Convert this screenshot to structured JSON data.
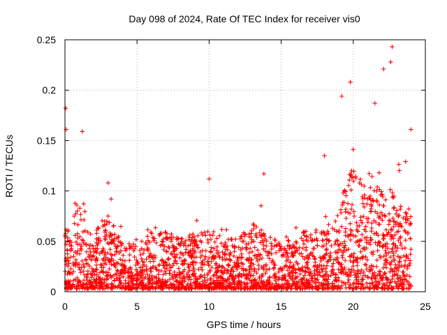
{
  "chart_data": {
    "type": "scatter",
    "title": "Day 098 of 2024, Rate Of TEC Index for receiver vis0",
    "xlabel": "GPS time / hours",
    "ylabel": "ROTI / TECUs",
    "xlim": [
      0,
      25
    ],
    "ylim": [
      0,
      0.25
    ],
    "x_ticks": [
      0,
      5,
      10,
      15,
      20,
      25
    ],
    "x_tick_labels": [
      "0",
      "5",
      "10",
      "15",
      "20",
      "25"
    ],
    "y_ticks": [
      0,
      0.05,
      0.1,
      0.15,
      0.2,
      0.25
    ],
    "y_tick_labels": [
      "0",
      "0.05",
      "0.1",
      "0.15",
      "0.2",
      "0.25"
    ],
    "grid": true,
    "marker": "plus",
    "color": "#ff0000",
    "x_range_of_data": [
      0,
      24
    ],
    "notable_points": [
      {
        "x": 0.05,
        "y": 0.182
      },
      {
        "x": 0.08,
        "y": 0.161
      },
      {
        "x": 1.2,
        "y": 0.159
      },
      {
        "x": 3.0,
        "y": 0.108
      },
      {
        "x": 10.0,
        "y": 0.112
      },
      {
        "x": 13.8,
        "y": 0.117
      },
      {
        "x": 18.0,
        "y": 0.135
      },
      {
        "x": 19.2,
        "y": 0.194
      },
      {
        "x": 19.8,
        "y": 0.208
      },
      {
        "x": 21.5,
        "y": 0.187
      },
      {
        "x": 22.1,
        "y": 0.221
      },
      {
        "x": 22.6,
        "y": 0.228
      },
      {
        "x": 22.7,
        "y": 0.243
      },
      {
        "x": 24.0,
        "y": 0.161
      }
    ],
    "envelope": [
      {
        "x": 0.0,
        "y": 0.06
      },
      {
        "x": 0.5,
        "y": 0.07
      },
      {
        "x": 1.0,
        "y": 0.09
      },
      {
        "x": 1.5,
        "y": 0.06
      },
      {
        "x": 2.0,
        "y": 0.055
      },
      {
        "x": 2.5,
        "y": 0.07
      },
      {
        "x": 3.0,
        "y": 0.075
      },
      {
        "x": 3.5,
        "y": 0.06
      },
      {
        "x": 4.0,
        "y": 0.045
      },
      {
        "x": 5.0,
        "y": 0.045
      },
      {
        "x": 6.0,
        "y": 0.055
      },
      {
        "x": 7.0,
        "y": 0.06
      },
      {
        "x": 8.0,
        "y": 0.05
      },
      {
        "x": 9.0,
        "y": 0.055
      },
      {
        "x": 10.0,
        "y": 0.06
      },
      {
        "x": 11.0,
        "y": 0.05
      },
      {
        "x": 12.0,
        "y": 0.05
      },
      {
        "x": 13.0,
        "y": 0.065
      },
      {
        "x": 14.0,
        "y": 0.055
      },
      {
        "x": 15.0,
        "y": 0.05
      },
      {
        "x": 16.0,
        "y": 0.055
      },
      {
        "x": 17.0,
        "y": 0.06
      },
      {
        "x": 18.0,
        "y": 0.06
      },
      {
        "x": 19.0,
        "y": 0.075
      },
      {
        "x": 19.5,
        "y": 0.11
      },
      {
        "x": 20.0,
        "y": 0.12
      },
      {
        "x": 20.5,
        "y": 0.105
      },
      {
        "x": 21.0,
        "y": 0.1
      },
      {
        "x": 21.5,
        "y": 0.12
      },
      {
        "x": 22.0,
        "y": 0.1
      },
      {
        "x": 22.5,
        "y": 0.11
      },
      {
        "x": 23.0,
        "y": 0.085
      },
      {
        "x": 23.5,
        "y": 0.09
      },
      {
        "x": 24.0,
        "y": 0.08
      }
    ]
  }
}
